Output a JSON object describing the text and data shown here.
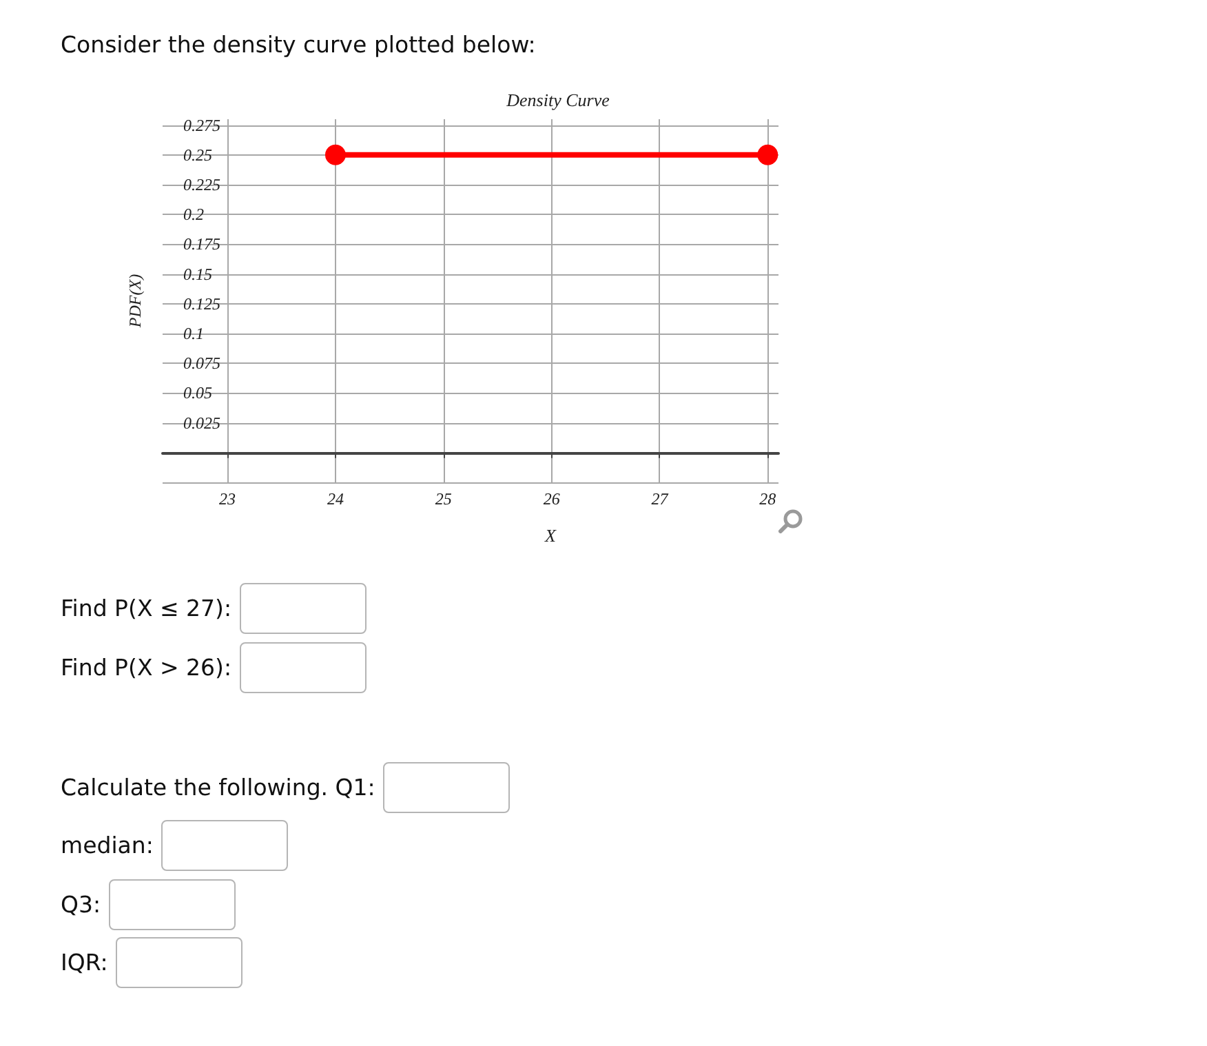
{
  "chart_data": {
    "type": "line",
    "title": "Density Curve",
    "xlabel": "X",
    "ylabel": "PDF(X)",
    "x": [
      24,
      28
    ],
    "series": [
      {
        "color": "#ff0000",
        "values": [
          0.25,
          0.25
        ]
      }
    ],
    "xlim": [
      22.4,
      28.1
    ],
    "ylim": [
      -0.025,
      0.28
    ],
    "xticks": [
      23,
      24,
      25,
      26,
      27,
      28
    ],
    "yticks": [
      {
        "value": -0.025,
        "label": null
      },
      {
        "value": 0,
        "label": null
      },
      0.025,
      0.05,
      0.075,
      0.1,
      0.125,
      0.15,
      0.175,
      0.2,
      0.225,
      0.25,
      0.275
    ],
    "grid": true,
    "marker": "circle",
    "line_style": "solid",
    "annotations": [
      "Consider the density curve plotted below:",
      "Find P(X ≤ 27):",
      "Find P(X > 26):",
      "Calculate the following. Q1:",
      "median:",
      "Q3:",
      "IQR:"
    ]
  }
}
